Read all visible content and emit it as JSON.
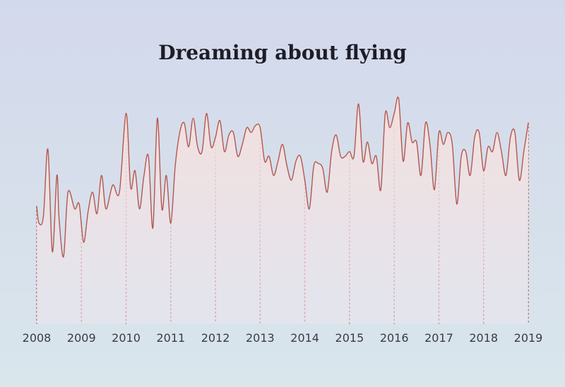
{
  "chart_data": {
    "type": "area",
    "title": "Dreaming about flying",
    "xlabel": "",
    "ylabel": "",
    "x_ticks": [
      "2008",
      "2009",
      "2010",
      "2011",
      "2012",
      "2013",
      "2014",
      "2015",
      "2016",
      "2017",
      "2018",
      "2019"
    ],
    "tick_years": [
      2008,
      2009,
      2010,
      2011,
      2012,
      2013,
      2014,
      2015,
      2016,
      2017,
      2018,
      2019
    ],
    "xlim": [
      2008,
      2019
    ],
    "ylim": [
      0,
      100
    ],
    "grid": false,
    "legend": "none",
    "colors": {
      "line": "#b4574f",
      "fill_top": "#f6e0dc",
      "fill_bottom": "#ece6ee",
      "dots": "#b4574f"
    },
    "series": [
      {
        "x": [
          2008.0,
          2008.05,
          2008.15,
          2008.25,
          2008.35,
          2008.45,
          2008.5,
          2008.6,
          2008.7,
          2008.85,
          2008.95,
          2009.05,
          2009.15,
          2009.25,
          2009.35,
          2009.45,
          2009.55,
          2009.7,
          2009.85,
          2010.0,
          2010.1,
          2010.2,
          2010.3,
          2010.4,
          2010.5,
          2010.6,
          2010.7,
          2010.8,
          2010.9,
          2011.0,
          2011.1,
          2011.2,
          2011.3,
          2011.4,
          2011.5,
          2011.6,
          2011.7,
          2011.8,
          2011.9,
          2012.0,
          2012.1,
          2012.2,
          2012.3,
          2012.4,
          2012.5,
          2012.6,
          2012.7,
          2012.8,
          2012.9,
          2013.0,
          2013.1,
          2013.2,
          2013.3,
          2013.4,
          2013.5,
          2013.6,
          2013.7,
          2013.8,
          2013.9,
          2014.0,
          2014.1,
          2014.2,
          2014.3,
          2014.4,
          2014.5,
          2014.6,
          2014.7,
          2014.8,
          2014.9,
          2015.0,
          2015.1,
          2015.2,
          2015.3,
          2015.4,
          2015.5,
          2015.6,
          2015.7,
          2015.8,
          2015.9,
          2016.0,
          2016.1,
          2016.2,
          2016.3,
          2016.4,
          2016.5,
          2016.6,
          2016.7,
          2016.8,
          2016.9,
          2017.0,
          2017.1,
          2017.2,
          2017.3,
          2017.4,
          2017.5,
          2017.6,
          2017.7,
          2017.8,
          2017.9,
          2018.0,
          2018.1,
          2018.2,
          2018.3,
          2018.4,
          2018.5,
          2018.6,
          2018.7,
          2018.8,
          2018.9,
          2019.0
        ],
        "values": [
          49,
          42,
          45,
          73,
          30,
          62,
          44,
          28,
          55,
          48,
          50,
          34,
          47,
          55,
          46,
          62,
          48,
          58,
          55,
          88,
          57,
          64,
          48,
          62,
          70,
          40,
          86,
          48,
          62,
          42,
          66,
          80,
          84,
          74,
          86,
          74,
          72,
          88,
          74,
          78,
          85,
          72,
          79,
          80,
          70,
          75,
          82,
          80,
          83,
          82,
          68,
          70,
          62,
          68,
          75,
          66,
          60,
          68,
          70,
          60,
          48,
          66,
          67,
          65,
          55,
          72,
          79,
          70,
          70,
          72,
          70,
          92,
          68,
          76,
          67,
          70,
          56,
          88,
          82,
          88,
          94,
          68,
          84,
          76,
          76,
          62,
          84,
          75,
          56,
          80,
          75,
          80,
          75,
          50,
          70,
          72,
          62,
          78,
          80,
          64,
          74,
          72,
          80,
          72,
          62,
          78,
          80,
          60,
          72,
          84
        ],
        "note": ""
      }
    ]
  }
}
